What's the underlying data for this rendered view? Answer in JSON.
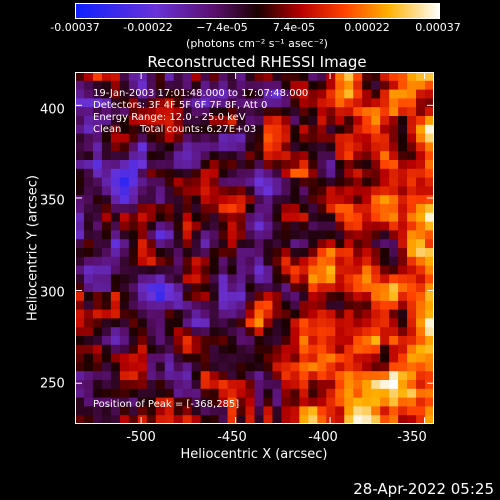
{
  "colorbar": {
    "ticks": [
      "-0.00037",
      "-0.00022",
      "−7.4e-05",
      "7.4e-05",
      "0.00022",
      "0.00037"
    ],
    "units": "(photons cm⁻² s⁻¹ asec⁻²)"
  },
  "chart_data": {
    "type": "heatmap",
    "title": "Reconstructed RHESSI Image",
    "xlabel": "Heliocentric X (arcsec)",
    "ylabel": "Heliocentric Y (arcsec)",
    "xlim": [
      -535,
      -345
    ],
    "ylim": [
      228,
      418
    ],
    "x_ticks": [
      "-500",
      "-450",
      "-400",
      "-350"
    ],
    "y_ticks": [
      "400",
      "350",
      "300",
      "250"
    ],
    "colorbar_range": [
      -0.00037,
      0.00037
    ],
    "peak_position": [
      -368,
      285
    ],
    "annotations": {
      "time": "19-Jan-2003 17:01:48.000 to 17:07:48.000",
      "detectors": "Detectors: 3F 4F 5F 6F 7F 8F, Att 0",
      "energy": "Energy Range: 12.0 - 25.0 keV",
      "clean": "Clean",
      "counts": "Total counts: 6.27E+03",
      "peak": "Position of Peak = [-368,285]"
    }
  },
  "footer": {
    "date": "28-Apr-2022 05:25"
  }
}
